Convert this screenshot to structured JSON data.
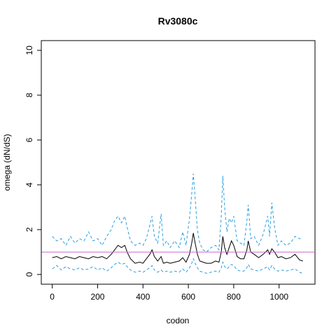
{
  "chart_data": {
    "type": "line",
    "title": "Rv3080c",
    "xlabel": "codon",
    "ylabel": "omega (dN/dS)",
    "xlim": [
      0,
      1110
    ],
    "ylim": [
      0,
      10
    ],
    "x_ticks": [
      "0",
      "200",
      "400",
      "600",
      "800",
      "1000"
    ],
    "y_ticks": [
      "0",
      "2",
      "4",
      "6",
      "8",
      "10"
    ],
    "reference_line": {
      "y": 1,
      "color": "#cc66cc"
    },
    "colors": {
      "omega": "#000000",
      "bounds": "#2b9fe0"
    },
    "series": [
      {
        "key": "upper",
        "style": "dashed",
        "points": [
          [
            0,
            1.7
          ],
          [
            20,
            1.5
          ],
          [
            40,
            1.6
          ],
          [
            60,
            1.3
          ],
          [
            80,
            1.7
          ],
          [
            100,
            1.4
          ],
          [
            120,
            1.6
          ],
          [
            140,
            1.5
          ],
          [
            160,
            1.9
          ],
          [
            180,
            1.5
          ],
          [
            200,
            1.6
          ],
          [
            220,
            1.3
          ],
          [
            240,
            1.7
          ],
          [
            260,
            2.0
          ],
          [
            275,
            2.4
          ],
          [
            290,
            2.6
          ],
          [
            305,
            2.3
          ],
          [
            320,
            2.6
          ],
          [
            330,
            2.1
          ],
          [
            345,
            1.5
          ],
          [
            365,
            1.3
          ],
          [
            385,
            1.4
          ],
          [
            400,
            1.3
          ],
          [
            415,
            1.6
          ],
          [
            430,
            2.2
          ],
          [
            440,
            2.6
          ],
          [
            450,
            1.7
          ],
          [
            465,
            1.4
          ],
          [
            480,
            2.7
          ],
          [
            490,
            1.3
          ],
          [
            505,
            1.5
          ],
          [
            520,
            1.2
          ],
          [
            540,
            1.5
          ],
          [
            560,
            1.2
          ],
          [
            575,
            1.9
          ],
          [
            590,
            1.3
          ],
          [
            605,
            2.5
          ],
          [
            615,
            3.6
          ],
          [
            622,
            4.5
          ],
          [
            630,
            3.4
          ],
          [
            640,
            2.0
          ],
          [
            650,
            1.4
          ],
          [
            665,
            1.1
          ],
          [
            680,
            1.0
          ],
          [
            700,
            1.2
          ],
          [
            720,
            1.3
          ],
          [
            735,
            1.1
          ],
          [
            745,
            2.6
          ],
          [
            752,
            4.4
          ],
          [
            760,
            3.0
          ],
          [
            770,
            1.9
          ],
          [
            780,
            2.5
          ],
          [
            790,
            2.3
          ],
          [
            800,
            2.6
          ],
          [
            815,
            1.5
          ],
          [
            830,
            1.4
          ],
          [
            845,
            1.3
          ],
          [
            858,
            2.4
          ],
          [
            864,
            3.1
          ],
          [
            875,
            1.6
          ],
          [
            890,
            1.7
          ],
          [
            910,
            1.3
          ],
          [
            930,
            1.8
          ],
          [
            950,
            2.6
          ],
          [
            958,
            1.7
          ],
          [
            968,
            3.2
          ],
          [
            980,
            2.1
          ],
          [
            995,
            1.3
          ],
          [
            1010,
            1.5
          ],
          [
            1030,
            1.3
          ],
          [
            1050,
            1.4
          ],
          [
            1070,
            1.7
          ],
          [
            1090,
            1.6
          ],
          [
            1105,
            1.6
          ]
        ]
      },
      {
        "key": "omega",
        "style": "solid",
        "points": [
          [
            0,
            0.75
          ],
          [
            20,
            0.8
          ],
          [
            40,
            0.7
          ],
          [
            60,
            0.8
          ],
          [
            80,
            0.75
          ],
          [
            100,
            0.7
          ],
          [
            120,
            0.8
          ],
          [
            140,
            0.75
          ],
          [
            160,
            0.7
          ],
          [
            180,
            0.8
          ],
          [
            200,
            0.75
          ],
          [
            220,
            0.8
          ],
          [
            240,
            0.7
          ],
          [
            260,
            0.9
          ],
          [
            275,
            1.1
          ],
          [
            290,
            1.3
          ],
          [
            305,
            1.2
          ],
          [
            320,
            1.3
          ],
          [
            330,
            1.0
          ],
          [
            345,
            0.7
          ],
          [
            365,
            0.5
          ],
          [
            385,
            0.55
          ],
          [
            400,
            0.5
          ],
          [
            415,
            0.7
          ],
          [
            430,
            0.9
          ],
          [
            440,
            1.1
          ],
          [
            450,
            0.8
          ],
          [
            465,
            0.6
          ],
          [
            480,
            0.8
          ],
          [
            490,
            0.5
          ],
          [
            505,
            0.55
          ],
          [
            520,
            0.5
          ],
          [
            540,
            0.55
          ],
          [
            560,
            0.6
          ],
          [
            575,
            0.75
          ],
          [
            590,
            0.55
          ],
          [
            605,
            0.9
          ],
          [
            615,
            1.4
          ],
          [
            622,
            1.85
          ],
          [
            630,
            1.4
          ],
          [
            640,
            0.9
          ],
          [
            650,
            0.6
          ],
          [
            665,
            0.55
          ],
          [
            680,
            0.5
          ],
          [
            700,
            0.5
          ],
          [
            720,
            0.6
          ],
          [
            735,
            0.55
          ],
          [
            745,
            1.0
          ],
          [
            752,
            1.7
          ],
          [
            760,
            1.2
          ],
          [
            770,
            0.9
          ],
          [
            780,
            1.2
          ],
          [
            790,
            1.5
          ],
          [
            800,
            1.3
          ],
          [
            815,
            0.8
          ],
          [
            830,
            0.7
          ],
          [
            845,
            0.7
          ],
          [
            858,
            1.1
          ],
          [
            864,
            1.5
          ],
          [
            875,
            1.0
          ],
          [
            890,
            0.9
          ],
          [
            910,
            0.75
          ],
          [
            930,
            0.9
          ],
          [
            950,
            1.1
          ],
          [
            958,
            0.9
          ],
          [
            968,
            1.15
          ],
          [
            980,
            1.0
          ],
          [
            995,
            0.75
          ],
          [
            1010,
            0.8
          ],
          [
            1030,
            0.7
          ],
          [
            1050,
            0.75
          ],
          [
            1070,
            0.9
          ],
          [
            1090,
            0.65
          ],
          [
            1105,
            0.6
          ]
        ]
      },
      {
        "key": "lower",
        "style": "dashed",
        "points": [
          [
            0,
            0.25
          ],
          [
            20,
            0.4
          ],
          [
            40,
            0.2
          ],
          [
            60,
            0.35
          ],
          [
            80,
            0.25
          ],
          [
            100,
            0.2
          ],
          [
            120,
            0.3
          ],
          [
            140,
            0.2
          ],
          [
            160,
            0.25
          ],
          [
            180,
            0.35
          ],
          [
            200,
            0.2
          ],
          [
            220,
            0.3
          ],
          [
            240,
            0.15
          ],
          [
            260,
            0.3
          ],
          [
            275,
            0.45
          ],
          [
            290,
            0.55
          ],
          [
            305,
            0.45
          ],
          [
            320,
            0.5
          ],
          [
            330,
            0.35
          ],
          [
            345,
            0.2
          ],
          [
            365,
            0.1
          ],
          [
            385,
            0.15
          ],
          [
            400,
            0.1
          ],
          [
            415,
            0.2
          ],
          [
            430,
            0.3
          ],
          [
            440,
            0.4
          ],
          [
            450,
            0.2
          ],
          [
            465,
            0.1
          ],
          [
            480,
            0.2
          ],
          [
            490,
            0.1
          ],
          [
            505,
            0.15
          ],
          [
            520,
            0.1
          ],
          [
            540,
            0.15
          ],
          [
            560,
            0.1
          ],
          [
            575,
            0.25
          ],
          [
            590,
            0.1
          ],
          [
            605,
            0.3
          ],
          [
            615,
            0.5
          ],
          [
            622,
            0.7
          ],
          [
            630,
            0.5
          ],
          [
            640,
            0.3
          ],
          [
            650,
            0.15
          ],
          [
            665,
            0.1
          ],
          [
            680,
            0.05
          ],
          [
            700,
            0.1
          ],
          [
            720,
            0.15
          ],
          [
            735,
            0.1
          ],
          [
            745,
            0.3
          ],
          [
            752,
            0.55
          ],
          [
            760,
            0.35
          ],
          [
            770,
            0.25
          ],
          [
            780,
            0.35
          ],
          [
            790,
            0.45
          ],
          [
            800,
            0.4
          ],
          [
            815,
            0.2
          ],
          [
            830,
            0.15
          ],
          [
            845,
            0.15
          ],
          [
            858,
            0.3
          ],
          [
            864,
            0.45
          ],
          [
            875,
            0.25
          ],
          [
            890,
            0.2
          ],
          [
            910,
            0.15
          ],
          [
            930,
            0.25
          ],
          [
            950,
            0.35
          ],
          [
            958,
            0.2
          ],
          [
            968,
            0.4
          ],
          [
            980,
            0.25
          ],
          [
            995,
            0.15
          ],
          [
            1010,
            0.2
          ],
          [
            1030,
            0.15
          ],
          [
            1050,
            0.2
          ],
          [
            1070,
            0.25
          ],
          [
            1090,
            0.1
          ],
          [
            1105,
            0.05
          ]
        ]
      }
    ]
  }
}
